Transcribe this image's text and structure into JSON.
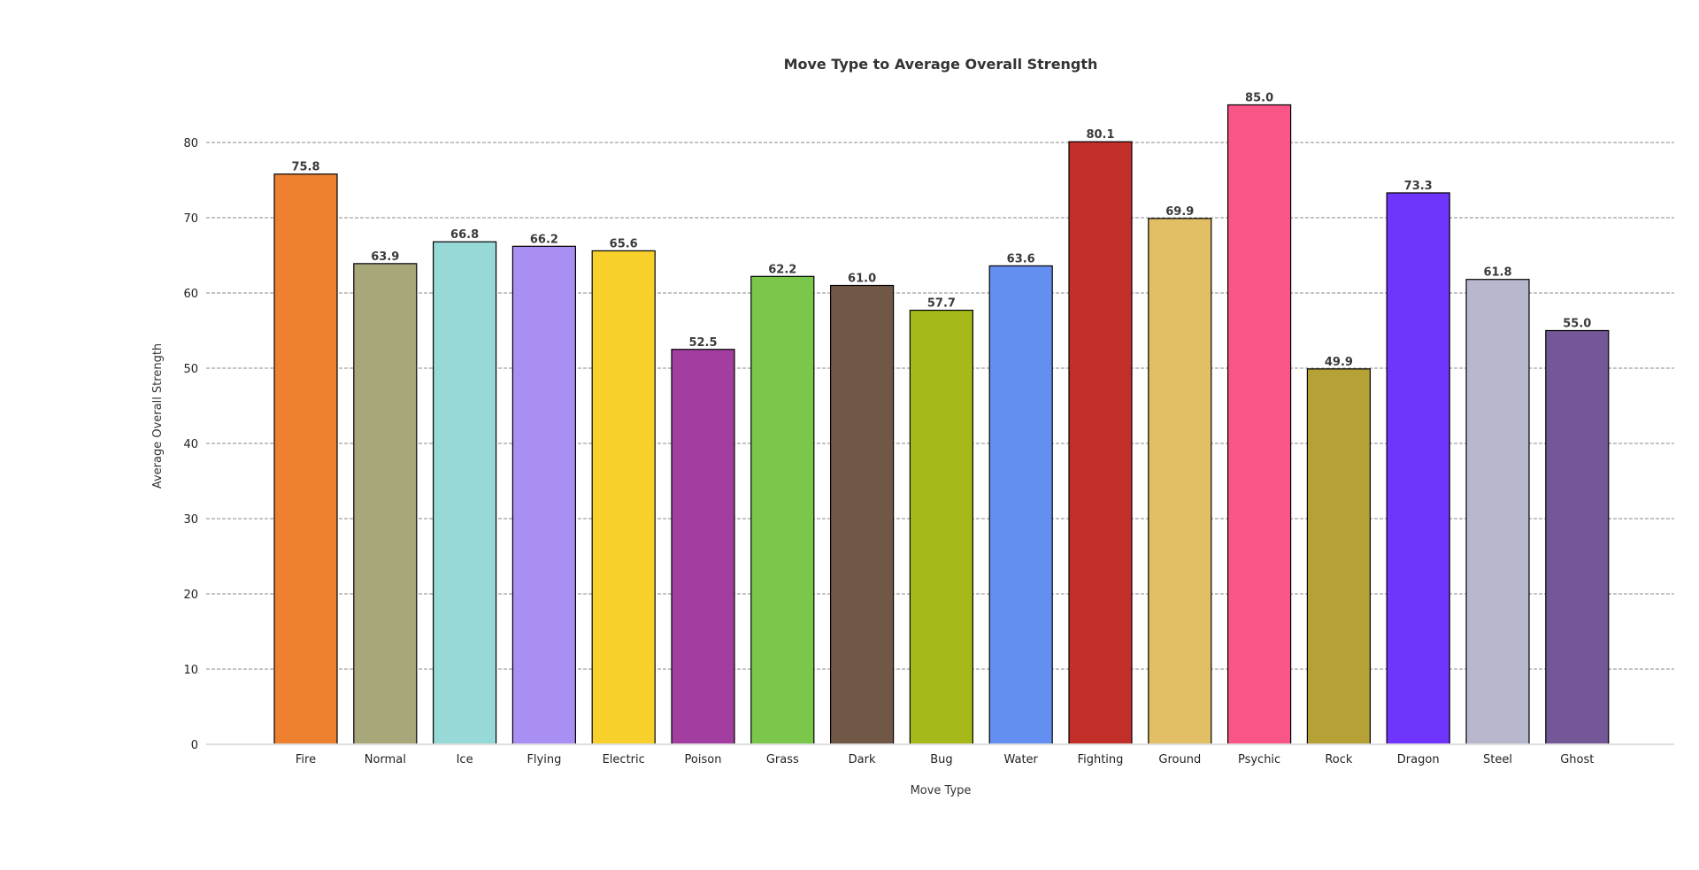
{
  "chart_data": {
    "type": "bar",
    "title": "Move Type to Average Overall Strength",
    "xlabel": "Move Type",
    "ylabel": "Average Overall Strength",
    "ylim": [
      0,
      88
    ],
    "yticks": [
      0,
      10,
      20,
      30,
      40,
      50,
      60,
      70,
      80
    ],
    "grid": "horizontal-dashed",
    "categories": [
      "Fire",
      "Normal",
      "Ice",
      "Flying",
      "Electric",
      "Poison",
      "Grass",
      "Dark",
      "Bug",
      "Water",
      "Fighting",
      "Ground",
      "Psychic",
      "Rock",
      "Dragon",
      "Steel",
      "Ghost"
    ],
    "values": [
      75.8,
      63.9,
      66.8,
      66.2,
      65.6,
      52.5,
      62.2,
      61.0,
      57.7,
      63.6,
      80.1,
      69.9,
      85.0,
      49.9,
      73.3,
      61.8,
      55.0
    ],
    "data_labels": [
      "75.8",
      "63.9",
      "66.8",
      "66.2",
      "65.6",
      "52.5",
      "62.2",
      "61.0",
      "57.7",
      "63.6",
      "80.1",
      "69.9",
      "85.0",
      "49.9",
      "73.3",
      "61.8",
      "55.0"
    ],
    "colors": [
      "#EE8130",
      "#A8A77A",
      "#96D9D6",
      "#A98FF3",
      "#F7D02C",
      "#A33EA1",
      "#7AC74C",
      "#705746",
      "#A6B91A",
      "#6390F0",
      "#C22E28",
      "#E2BF65",
      "#F95587",
      "#B6A136",
      "#6F35FC",
      "#B7B7CE",
      "#735797"
    ]
  }
}
